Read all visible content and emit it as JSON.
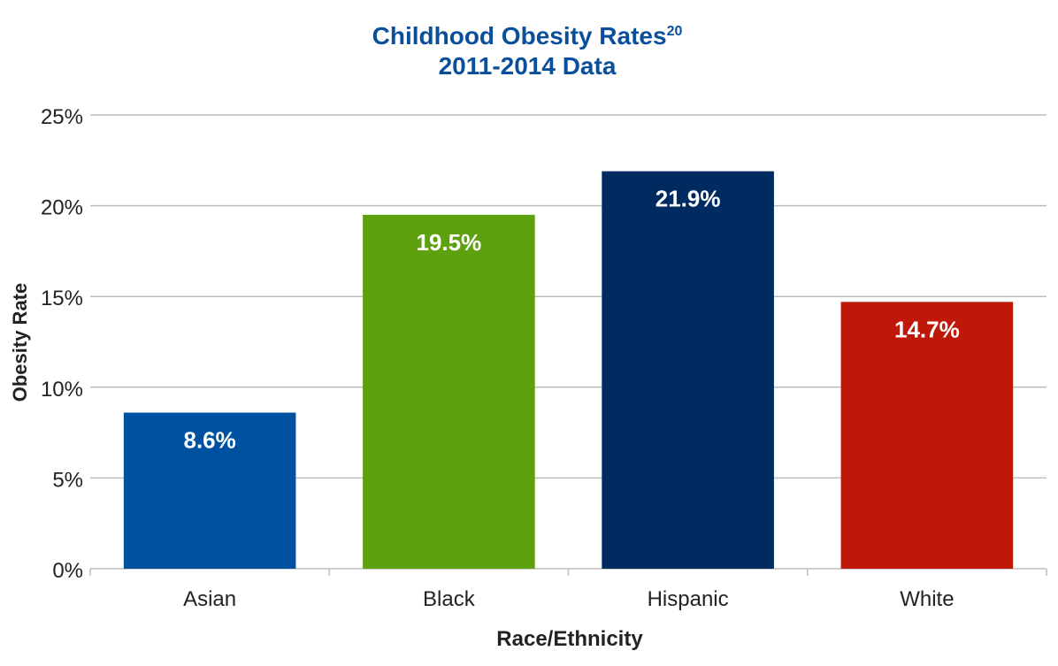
{
  "chart_data": {
    "type": "bar",
    "title": "Childhood Obesity Rates",
    "title_superscript": "20",
    "subtitle": "2011-2014 Data",
    "xlabel": "Race/Ethnicity",
    "ylabel": "Obesity Rate",
    "categories": [
      "Asian",
      "Black",
      "Hispanic",
      "White"
    ],
    "values": [
      8.6,
      19.5,
      21.9,
      14.7
    ],
    "value_labels": [
      "8.6%",
      "19.5%",
      "21.9%",
      "14.7%"
    ],
    "bar_colors": [
      "#0052a0",
      "#5ea10e",
      "#002b61",
      "#c01808"
    ],
    "ylim": [
      0,
      25
    ],
    "yticks": [
      0,
      5,
      10,
      15,
      20,
      25
    ],
    "ytick_labels": [
      "0%",
      "5%",
      "10%",
      "15%",
      "20%",
      "25%"
    ],
    "grid": true,
    "legend": "none"
  },
  "colors": {
    "title": "#0a4f9c",
    "axis_text": "#222222",
    "grid": "#bdbdbd",
    "bar_label": "#ffffff"
  }
}
